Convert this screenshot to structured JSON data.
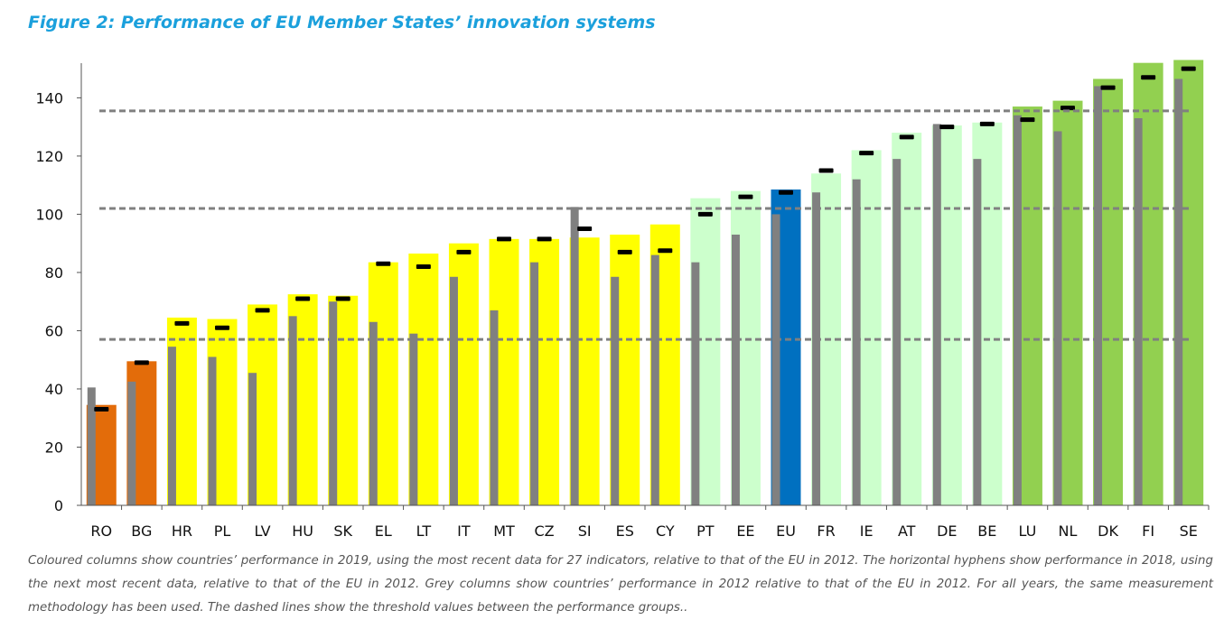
{
  "title": "Figure 2: Performance of EU Member States’ innovation systems",
  "caption": "Coloured columns show countries’ performance in 2019, using the most recent data for 27 indicators, relative to that of the EU in 2012. The horizontal hyphens show performance in 2018, using the next most recent data, relative to that of the EU in 2012. Grey columns show countries’ performance in 2012 relative to that of the EU in 2012. For all years, the same measurement methodology has been used. The dashed lines show the threshold values between the performance groups..",
  "colors": {
    "modest": "#e36c0a",
    "moderate": "#ffff00",
    "strong": "#ccffcc",
    "leader": "#92d050",
    "eu": "#0070c0",
    "grey": "#808080",
    "hyphen": "#000000",
    "threshold": "#808080"
  },
  "chart_data": {
    "type": "bar",
    "ylim": [
      0,
      155
    ],
    "yticks": [
      "0",
      "20",
      "40",
      "60",
      "80",
      "100",
      "120",
      "140"
    ],
    "thresholds": [
      57,
      102,
      135.5
    ],
    "categories": [
      "RO",
      "BG",
      "HR",
      "PL",
      "LV",
      "HU",
      "SK",
      "EL",
      "LT",
      "IT",
      "MT",
      "CZ",
      "SI",
      "ES",
      "CY",
      "PT",
      "EE",
      "EU",
      "FR",
      "IE",
      "AT",
      "DE",
      "BE",
      "LU",
      "NL",
      "DK",
      "FI",
      "SE"
    ],
    "groups": [
      "modest",
      "modest",
      "moderate",
      "moderate",
      "moderate",
      "moderate",
      "moderate",
      "moderate",
      "moderate",
      "moderate",
      "moderate",
      "moderate",
      "moderate",
      "moderate",
      "moderate",
      "strong",
      "strong",
      "eu",
      "strong",
      "strong",
      "strong",
      "strong",
      "strong",
      "leader",
      "leader",
      "leader",
      "leader",
      "leader"
    ],
    "series": [
      {
        "values": [
          34.5,
          49.5,
          64.5,
          64.0,
          69.0,
          72.5,
          72.0,
          83.5,
          86.5,
          90.0,
          91.5,
          91.5,
          92.0,
          93.0,
          96.5,
          105.5,
          108.0,
          108.5,
          114.0,
          122.0,
          128.0,
          130.5,
          131.5,
          137.0,
          139.0,
          146.5,
          152.0,
          153.0
        ]
      },
      {
        "values": [
          40.5,
          42.5,
          54.5,
          51.0,
          45.5,
          65.0,
          70.0,
          63.0,
          59.0,
          78.5,
          67.0,
          83.5,
          102.5,
          78.5,
          86.0,
          83.5,
          93.0,
          100.0,
          107.5,
          112.0,
          119.0,
          131.0,
          119.0,
          134.0,
          128.5,
          144.0,
          133.0,
          146.5
        ]
      },
      {
        "values": [
          33.0,
          49.0,
          62.5,
          61.0,
          67.0,
          71.0,
          71.0,
          83.0,
          82.0,
          87.0,
          91.5,
          91.5,
          95.0,
          87.0,
          87.5,
          100.0,
          106.0,
          107.5,
          115.0,
          121.0,
          126.5,
          130.0,
          131.0,
          132.5,
          136.5,
          143.5,
          147.0,
          150.0
        ]
      }
    ]
  }
}
